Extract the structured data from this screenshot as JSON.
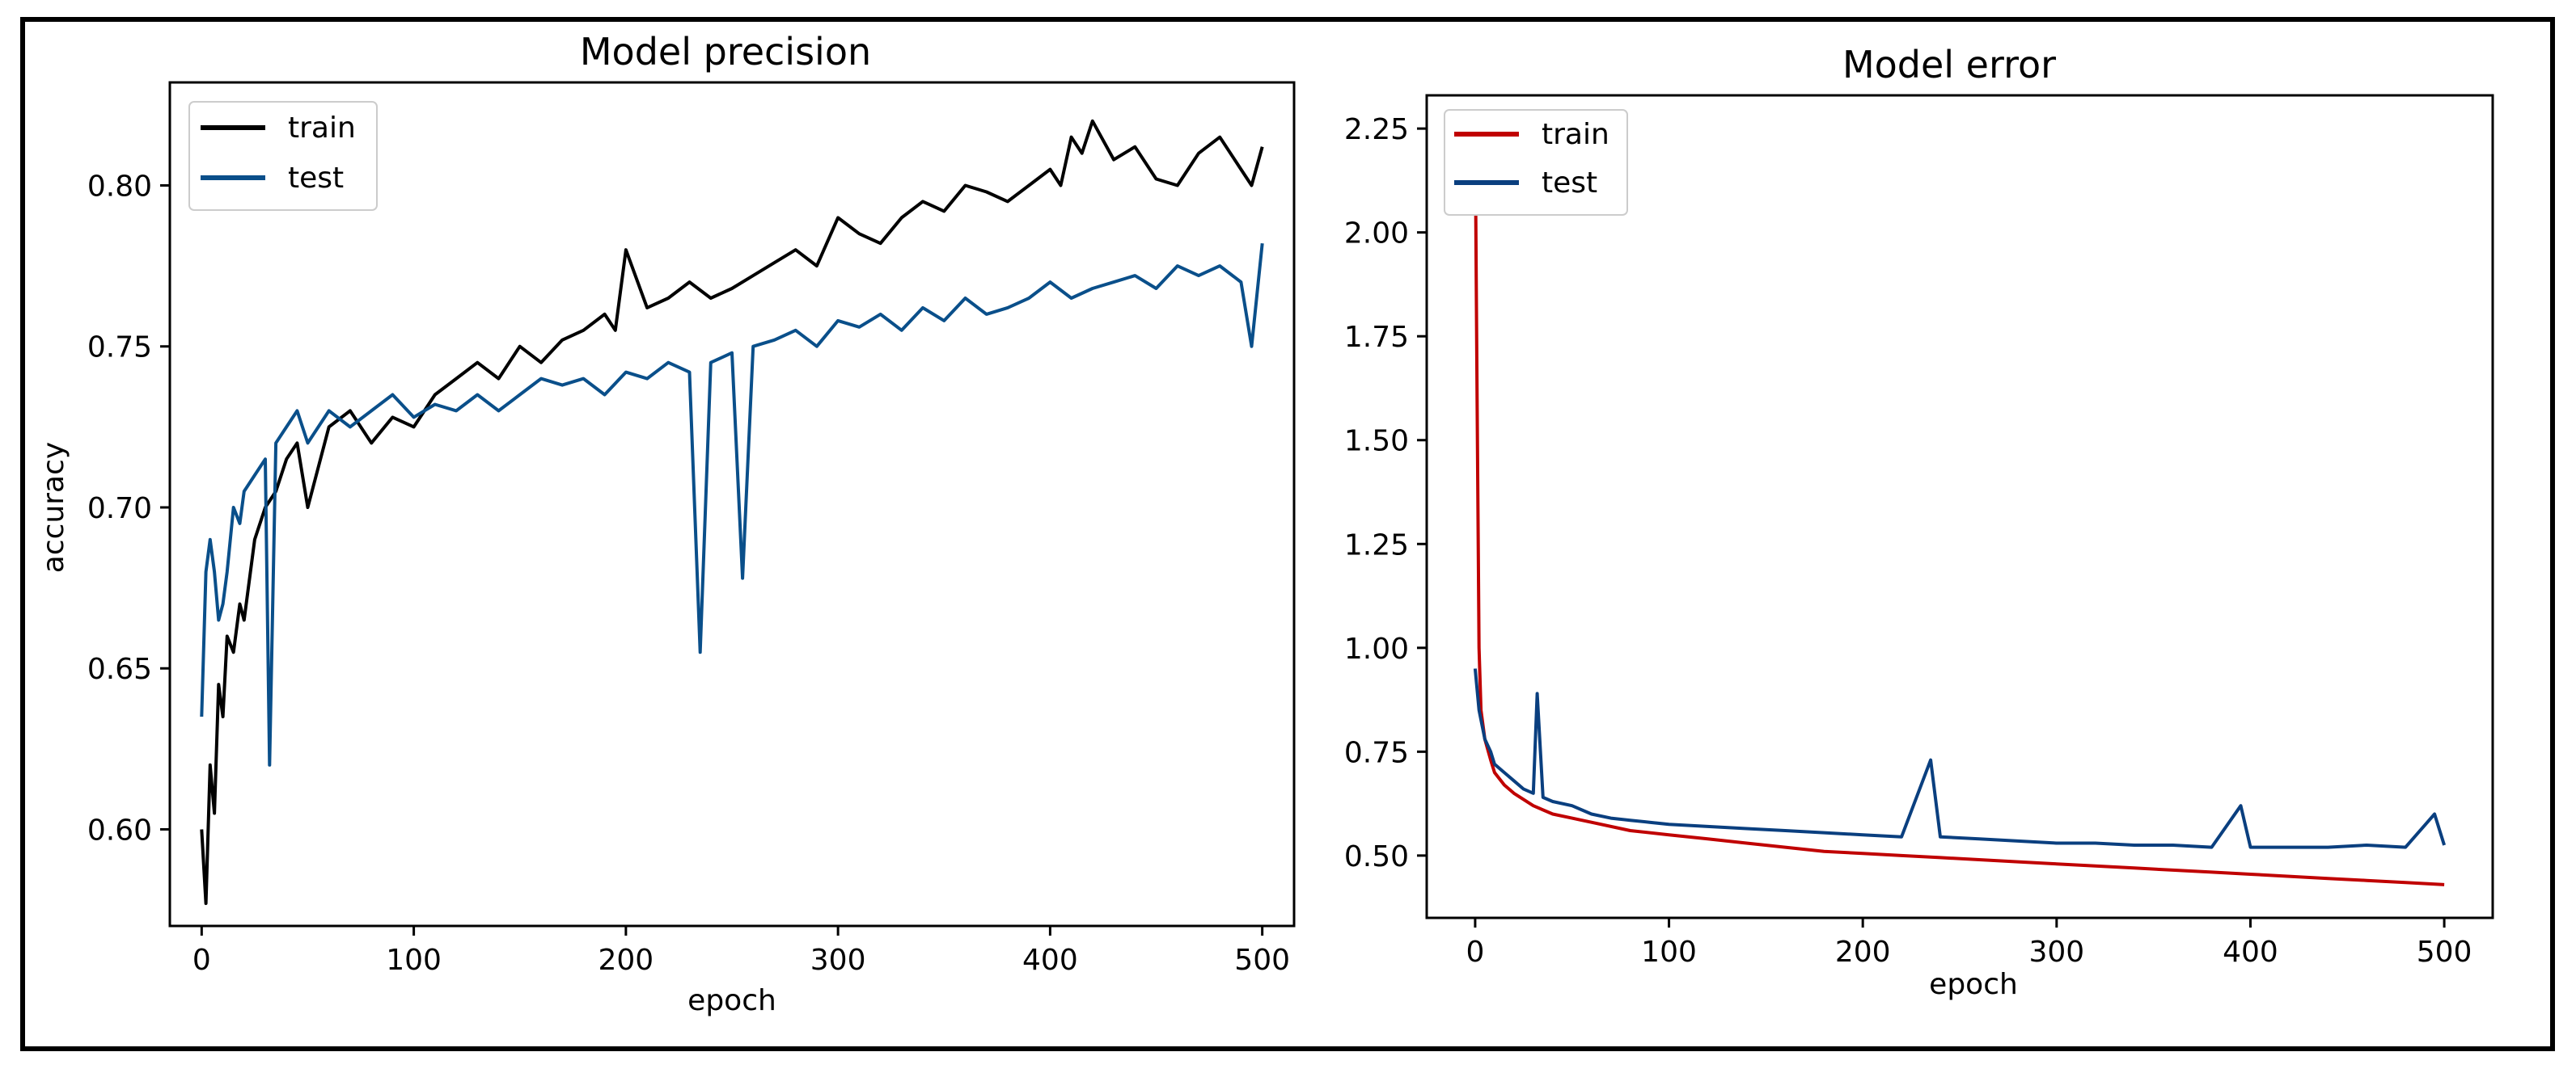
{
  "chart_data": [
    {
      "type": "line",
      "title": "Model precision",
      "xlabel": "epoch",
      "ylabel": "accuracy",
      "xlim": [
        -15,
        515
      ],
      "ylim": [
        0.57,
        0.832
      ],
      "xticks": [
        0,
        100,
        200,
        300,
        400,
        500
      ],
      "xtick_labels": [
        "0",
        "100",
        "200",
        "300",
        "400",
        "500"
      ],
      "yticks": [
        0.6,
        0.65,
        0.7,
        0.75,
        0.8
      ],
      "ytick_labels": [
        "0.60",
        "0.65",
        "0.70",
        "0.75",
        "0.80"
      ],
      "grid": false,
      "legend_position": "top-left",
      "series": [
        {
          "name": "train",
          "color": "#000000",
          "x": [
            0,
            2,
            4,
            6,
            8,
            10,
            12,
            15,
            18,
            20,
            25,
            30,
            35,
            40,
            45,
            50,
            60,
            70,
            80,
            90,
            100,
            110,
            120,
            130,
            140,
            150,
            160,
            170,
            180,
            190,
            195,
            200,
            210,
            220,
            230,
            240,
            250,
            260,
            270,
            280,
            290,
            300,
            310,
            320,
            330,
            340,
            350,
            360,
            370,
            380,
            390,
            400,
            405,
            410,
            415,
            420,
            430,
            440,
            450,
            460,
            470,
            480,
            490,
            495,
            500
          ],
          "values": [
            0.6,
            0.577,
            0.62,
            0.605,
            0.645,
            0.635,
            0.66,
            0.655,
            0.67,
            0.665,
            0.69,
            0.7,
            0.705,
            0.715,
            0.72,
            0.7,
            0.725,
            0.73,
            0.72,
            0.728,
            0.725,
            0.735,
            0.74,
            0.745,
            0.74,
            0.75,
            0.745,
            0.752,
            0.755,
            0.76,
            0.755,
            0.78,
            0.762,
            0.765,
            0.77,
            0.765,
            0.768,
            0.772,
            0.776,
            0.78,
            0.775,
            0.79,
            0.785,
            0.782,
            0.79,
            0.795,
            0.792,
            0.8,
            0.798,
            0.795,
            0.8,
            0.805,
            0.8,
            0.815,
            0.81,
            0.82,
            0.808,
            0.812,
            0.802,
            0.8,
            0.81,
            0.815,
            0.805,
            0.8,
            0.812
          ]
        },
        {
          "name": "test",
          "color": "#0a4f8a",
          "x": [
            0,
            2,
            4,
            6,
            8,
            10,
            12,
            15,
            18,
            20,
            25,
            30,
            32,
            35,
            40,
            45,
            50,
            60,
            70,
            80,
            90,
            100,
            110,
            120,
            130,
            140,
            150,
            160,
            170,
            180,
            190,
            200,
            210,
            220,
            230,
            235,
            240,
            250,
            255,
            260,
            270,
            280,
            290,
            300,
            310,
            320,
            330,
            340,
            350,
            360,
            370,
            380,
            390,
            400,
            410,
            420,
            430,
            440,
            450,
            460,
            470,
            480,
            490,
            495,
            500
          ],
          "values": [
            0.635,
            0.68,
            0.69,
            0.68,
            0.665,
            0.67,
            0.68,
            0.7,
            0.695,
            0.705,
            0.71,
            0.715,
            0.62,
            0.72,
            0.725,
            0.73,
            0.72,
            0.73,
            0.725,
            0.73,
            0.735,
            0.728,
            0.732,
            0.73,
            0.735,
            0.73,
            0.735,
            0.74,
            0.738,
            0.74,
            0.735,
            0.742,
            0.74,
            0.745,
            0.742,
            0.655,
            0.745,
            0.748,
            0.678,
            0.75,
            0.752,
            0.755,
            0.75,
            0.758,
            0.756,
            0.76,
            0.755,
            0.762,
            0.758,
            0.765,
            0.76,
            0.762,
            0.765,
            0.77,
            0.765,
            0.768,
            0.77,
            0.772,
            0.768,
            0.775,
            0.772,
            0.775,
            0.77,
            0.75,
            0.782
          ]
        }
      ]
    },
    {
      "type": "line",
      "title": "Model error",
      "xlabel": "epoch",
      "ylabel": "",
      "xlim": [
        -25,
        525
      ],
      "ylim": [
        0.35,
        2.33
      ],
      "xticks": [
        0,
        100,
        200,
        300,
        400,
        500
      ],
      "xtick_labels": [
        "0",
        "100",
        "200",
        "300",
        "400",
        "500"
      ],
      "yticks": [
        0.5,
        0.75,
        1.0,
        1.25,
        1.5,
        1.75,
        2.0,
        2.25
      ],
      "ytick_labels": [
        "0.50",
        "0.75",
        "1.00",
        "1.25",
        "1.50",
        "1.75",
        "2.00",
        "2.25"
      ],
      "grid": false,
      "legend_position": "top-left",
      "series": [
        {
          "name": "train",
          "color": "#c00000",
          "x": [
            0,
            1,
            2,
            3,
            5,
            8,
            10,
            15,
            20,
            30,
            40,
            50,
            60,
            80,
            100,
            120,
            140,
            160,
            180,
            200,
            220,
            240,
            260,
            280,
            300,
            320,
            340,
            360,
            380,
            400,
            420,
            440,
            460,
            480,
            500
          ],
          "values": [
            2.25,
            1.6,
            1.0,
            0.85,
            0.78,
            0.73,
            0.7,
            0.67,
            0.65,
            0.62,
            0.6,
            0.59,
            0.58,
            0.56,
            0.55,
            0.54,
            0.53,
            0.52,
            0.51,
            0.505,
            0.5,
            0.495,
            0.49,
            0.485,
            0.48,
            0.475,
            0.47,
            0.465,
            0.46,
            0.455,
            0.45,
            0.445,
            0.44,
            0.435,
            0.43
          ]
        },
        {
          "name": "test",
          "color": "#0a3f7f",
          "x": [
            0,
            2,
            5,
            8,
            10,
            15,
            20,
            25,
            30,
            32,
            35,
            40,
            50,
            60,
            70,
            80,
            90,
            100,
            120,
            140,
            160,
            180,
            200,
            220,
            235,
            240,
            260,
            280,
            300,
            320,
            340,
            360,
            380,
            395,
            400,
            420,
            440,
            460,
            480,
            495,
            500
          ],
          "values": [
            0.95,
            0.85,
            0.78,
            0.75,
            0.72,
            0.7,
            0.68,
            0.66,
            0.65,
            0.89,
            0.64,
            0.63,
            0.62,
            0.6,
            0.59,
            0.585,
            0.58,
            0.575,
            0.57,
            0.565,
            0.56,
            0.555,
            0.55,
            0.545,
            0.73,
            0.545,
            0.54,
            0.535,
            0.53,
            0.53,
            0.525,
            0.525,
            0.52,
            0.62,
            0.52,
            0.52,
            0.52,
            0.525,
            0.52,
            0.6,
            0.525
          ]
        }
      ]
    }
  ]
}
